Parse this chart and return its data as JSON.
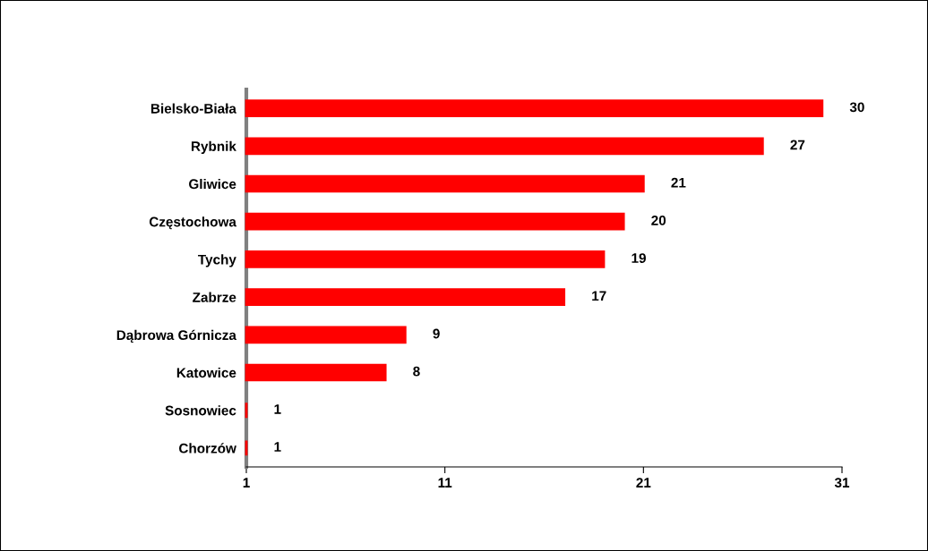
{
  "chart_data": {
    "type": "bar",
    "orientation": "horizontal",
    "categories": [
      "Bielsko-Biała",
      "Rybnik",
      "Gliwice",
      "Częstochowa",
      "Tychy",
      "Zabrze",
      "Dąbrowa Górnicza",
      "Katowice",
      "Sosnowiec",
      "Chorzów"
    ],
    "values": [
      30,
      27,
      21,
      20,
      19,
      17,
      9,
      8,
      1,
      1
    ],
    "color": "#ff0000",
    "xlim": [
      1,
      31
    ],
    "xticks": [
      1,
      11,
      21,
      31
    ],
    "data_labels": true,
    "grid": false,
    "legend": false
  }
}
